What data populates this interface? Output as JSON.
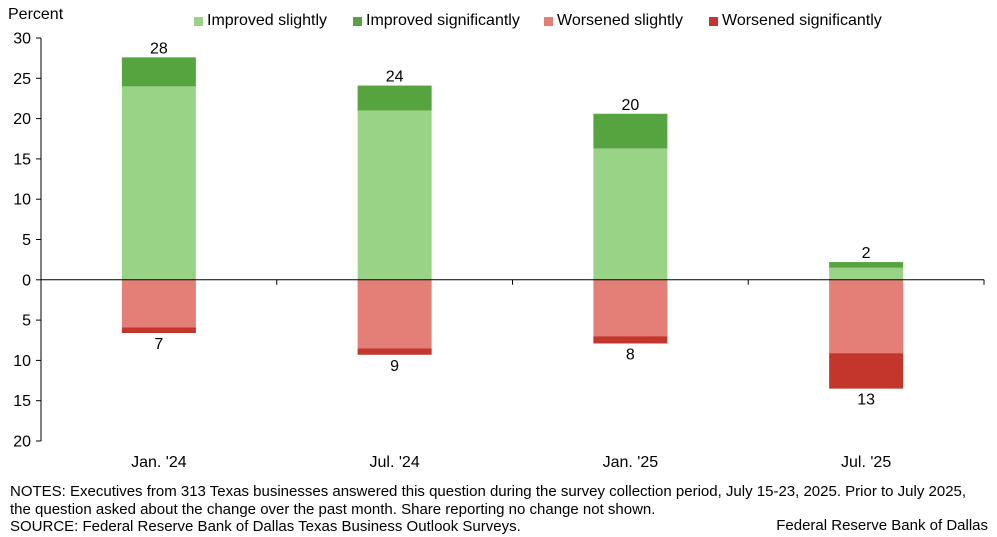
{
  "chart_data": {
    "type": "bar",
    "stacked": true,
    "ylabel": "Percent",
    "ylim": [
      -20,
      30
    ],
    "y_ticks": [
      30,
      25,
      20,
      15,
      10,
      5,
      0,
      -5,
      -10,
      -15,
      -20
    ],
    "y_tick_labels": [
      "30",
      "25",
      "20",
      "15",
      "10",
      "5",
      "0",
      "5",
      "10",
      "15",
      "20"
    ],
    "categories": [
      "Jan. '24",
      "Jul. '24",
      "Jan. '25",
      "Jul. '25"
    ],
    "series": [
      {
        "name": "Improved slightly",
        "color": "#99d385",
        "values": [
          24,
          21,
          16.3,
          1.5
        ]
      },
      {
        "name": "Improved significantly",
        "color": "#56a43f",
        "values": [
          3.6,
          3.1,
          4.3,
          0.7
        ]
      },
      {
        "name": "Worsened slightly",
        "color": "#e47f78",
        "values": [
          -5.9,
          -8.5,
          -7.0,
          -9.1
        ]
      },
      {
        "name": "Worsened significantly",
        "color": "#c4352b",
        "values": [
          -0.7,
          -0.8,
          -0.9,
          -4.4
        ]
      }
    ],
    "positive_totals": [
      "28",
      "24",
      "20",
      "2"
    ],
    "negative_totals": [
      "7",
      "9",
      "8",
      "13"
    ],
    "grid": false,
    "legend_position": "top"
  },
  "notes": {
    "line1": "NOTES: Executives from 313 Texas businesses answered this question during the survey collection period, July 15-23, 2025. Prior to July 2025, the question asked about the change over the past month. Share reporting no change not shown.",
    "source": "SOURCE: Federal Reserve Bank of Dallas Texas Business Outlook Surveys.",
    "brand": "Federal Reserve Bank of Dallas"
  }
}
